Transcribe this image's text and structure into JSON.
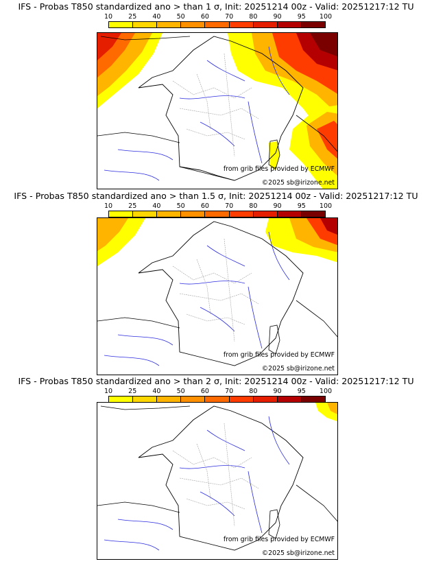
{
  "panels": [
    {
      "title": "IFS - Probas T850  standardized ano > than 1 σ, Init: 20251214 00z - Valid: 20251217:12 TU",
      "source_credit": "from grib files provided by ECMWF",
      "copyright": "©2025 sb@irizone.net"
    },
    {
      "title": "IFS - Probas T850  standardized ano > than 1.5 σ, Init: 20251214 00z - Valid: 20251217:12 TU",
      "source_credit": "from grib files provided by ECMWF",
      "copyright": "©2025 sb@irizone.net"
    },
    {
      "title": "IFS - Probas T850  standardized ano > than 2 σ, Init: 20251214 00z - Valid: 20251217:12 TU",
      "source_credit": "from grib files provided by ECMWF",
      "copyright": "©2025 sb@irizone.net"
    }
  ],
  "colorbar": {
    "ticks": [
      "10",
      "25",
      "40",
      "50",
      "60",
      "70",
      "80",
      "90",
      "95",
      "100"
    ],
    "colors": [
      "#ffff00",
      "#ffd700",
      "#ffb400",
      "#ff9000",
      "#ff6a00",
      "#ff3c00",
      "#e61e00",
      "#b40000",
      "#7a0000"
    ]
  },
  "map_colors": {
    "border": "#000000",
    "rivers": "#2a2ae0",
    "regions": "#a0a0a0"
  }
}
